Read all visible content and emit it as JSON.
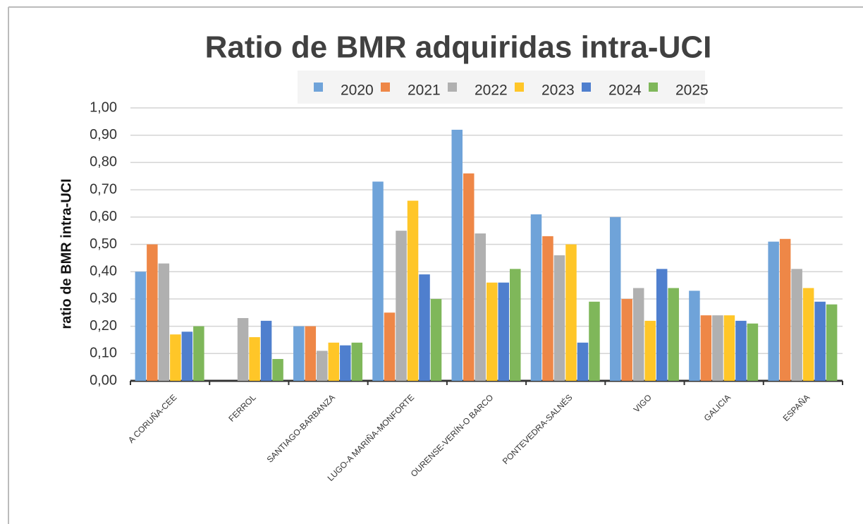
{
  "chart_data": {
    "type": "bar",
    "title": "Ratio de BMR adquiridas intra-UCI",
    "y_label": "ratio de  BMR intra-UCI",
    "categories": [
      "A CORUÑA-CEE",
      "FERROL",
      "SANTIAGO-BARBANZA",
      "LUGO-A  MARIÑA-MONFORTE",
      "OURENSE-VERÍN-O BARCO",
      "PONTEVEDRA-SALNÉS",
      "VIGO",
      "GALICIA",
      "ESPAÑA"
    ],
    "series": [
      {
        "name": "2020",
        "color": "#6fa3d9",
        "values": [
          0.4,
          0,
          0.2,
          0.73,
          0.92,
          0.61,
          0.6,
          0.33,
          0.51
        ]
      },
      {
        "name": "2021",
        "color": "#ee8747",
        "values": [
          0.5,
          0,
          0.2,
          0.25,
          0.76,
          0.53,
          0.3,
          0.24,
          0.52
        ]
      },
      {
        "name": "2022",
        "color": "#b0b0b0",
        "values": [
          0.43,
          0.23,
          0.11,
          0.55,
          0.54,
          0.46,
          0.34,
          0.24,
          0.41
        ]
      },
      {
        "name": "2023",
        "color": "#ffc628",
        "values": [
          0.17,
          0.16,
          0.14,
          0.66,
          0.36,
          0.5,
          0.22,
          0.24,
          0.34
        ]
      },
      {
        "name": "2024",
        "color": "#4f7fce",
        "values": [
          0.18,
          0.22,
          0.13,
          0.39,
          0.36,
          0.14,
          0.41,
          0.22,
          0.29
        ]
      },
      {
        "name": "2025",
        "color": "#7fb75a",
        "values": [
          0.2,
          0.08,
          0.14,
          0.3,
          0.41,
          0.29,
          0.34,
          0.21,
          0.28
        ]
      }
    ],
    "ylim": [
      0,
      1
    ],
    "yticks": [
      {
        "value": 0,
        "label": "0,00"
      },
      {
        "value": 0.1,
        "label": "0,10"
      },
      {
        "value": 0.2,
        "label": "0,20"
      },
      {
        "value": 0.3,
        "label": "0,30"
      },
      {
        "value": 0.4,
        "label": "0,40"
      },
      {
        "value": 0.5,
        "label": "0,50"
      },
      {
        "value": 0.6,
        "label": "0,60"
      },
      {
        "value": 0.7,
        "label": "0,70"
      },
      {
        "value": 0.8,
        "label": "0,80"
      },
      {
        "value": 0.9,
        "label": "0,90"
      },
      {
        "value": 1,
        "label": "1,00"
      }
    ],
    "grid": true,
    "legend": "top"
  }
}
